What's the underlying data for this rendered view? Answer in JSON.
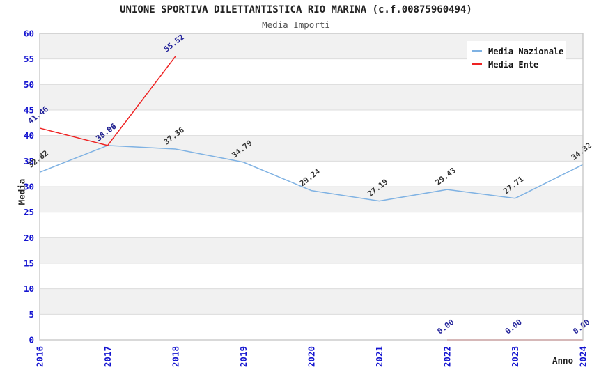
{
  "header": {
    "title": "UNIONE SPORTIVA DILETTANTISTICA RIO MARINA (c.f.00875960494)",
    "subtitle": "Media Importi"
  },
  "legend": {
    "items": [
      {
        "label": "Media Nazionale",
        "color": "#7fb2e3"
      },
      {
        "label": "Media Ente",
        "color": "#ee2222"
      }
    ]
  },
  "axes": {
    "x_title": "Anno",
    "y_title": "Media",
    "tick_label_color": "#1515d0"
  },
  "chart_data": {
    "type": "line",
    "title": "UNIONE SPORTIVA DILETTANTISTICA RIO MARINA (c.f.00875960494)",
    "subtitle": "Media Importi",
    "xlabel": "Anno",
    "ylabel": "Media",
    "categories": [
      "2016",
      "2017",
      "2018",
      "2019",
      "2020",
      "2021",
      "2022",
      "2023",
      "2024"
    ],
    "series": [
      {
        "name": "Media Nazionale",
        "color": "#7fb2e3",
        "label_color": "#333333",
        "values": [
          32.82,
          38.06,
          37.36,
          34.79,
          29.24,
          27.19,
          29.43,
          27.71,
          34.32
        ]
      },
      {
        "name": "Media Ente",
        "color": "#ee2222",
        "label_color": "#24249b",
        "values": [
          41.46,
          38.06,
          55.52,
          null,
          null,
          null,
          0.0,
          0.0,
          0.0
        ]
      }
    ],
    "ylim": [
      0,
      60
    ],
    "ytick_step": 5,
    "grid": true,
    "legend_position": "top-right",
    "band_color": "#f1f1f1",
    "grid_color": "#dcdcdc",
    "border_color": "#c9c9c9",
    "label_rotation_deg": -38
  }
}
